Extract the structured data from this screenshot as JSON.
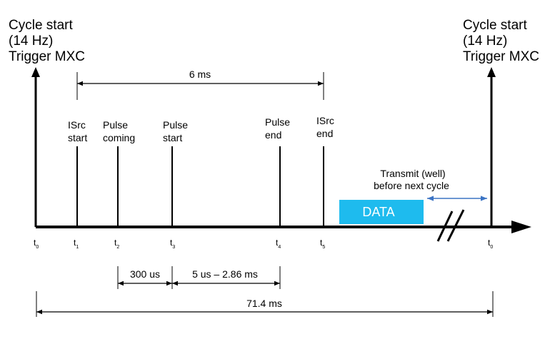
{
  "cycle_start_left": [
    "Cycle start",
    "(14 Hz)",
    "Trigger MXC"
  ],
  "cycle_start_right": [
    "Cycle start",
    "(14 Hz)",
    "Trigger MXC"
  ],
  "span_6ms": "6 ms",
  "events": [
    {
      "label": [
        "ISrc",
        "start"
      ],
      "tick": "t",
      "sub": "1"
    },
    {
      "label": [
        "Pulse",
        "coming"
      ],
      "tick": "t",
      "sub": "2"
    },
    {
      "label": [
        "Pulse",
        "start"
      ],
      "tick": "t",
      "sub": "3"
    },
    {
      "label": [
        "Pulse",
        "end"
      ],
      "tick": "t",
      "sub": "4"
    },
    {
      "label": [
        "ISrc",
        "end"
      ],
      "tick": "t",
      "sub": "5"
    }
  ],
  "t0_left": {
    "tick": "t",
    "sub": "0"
  },
  "t0_right": {
    "tick": "t",
    "sub": "0"
  },
  "data_box": "DATA",
  "transmit": [
    "Transmit (well)",
    "before next cycle"
  ],
  "span_300us": "300 us",
  "span_pulse": "5 us – 2.86 ms",
  "span_total": "71.4 ms",
  "colors": {
    "data_fill": "#1ebbee",
    "transmit_arrow": "#3c74c4",
    "line": "#000000"
  }
}
